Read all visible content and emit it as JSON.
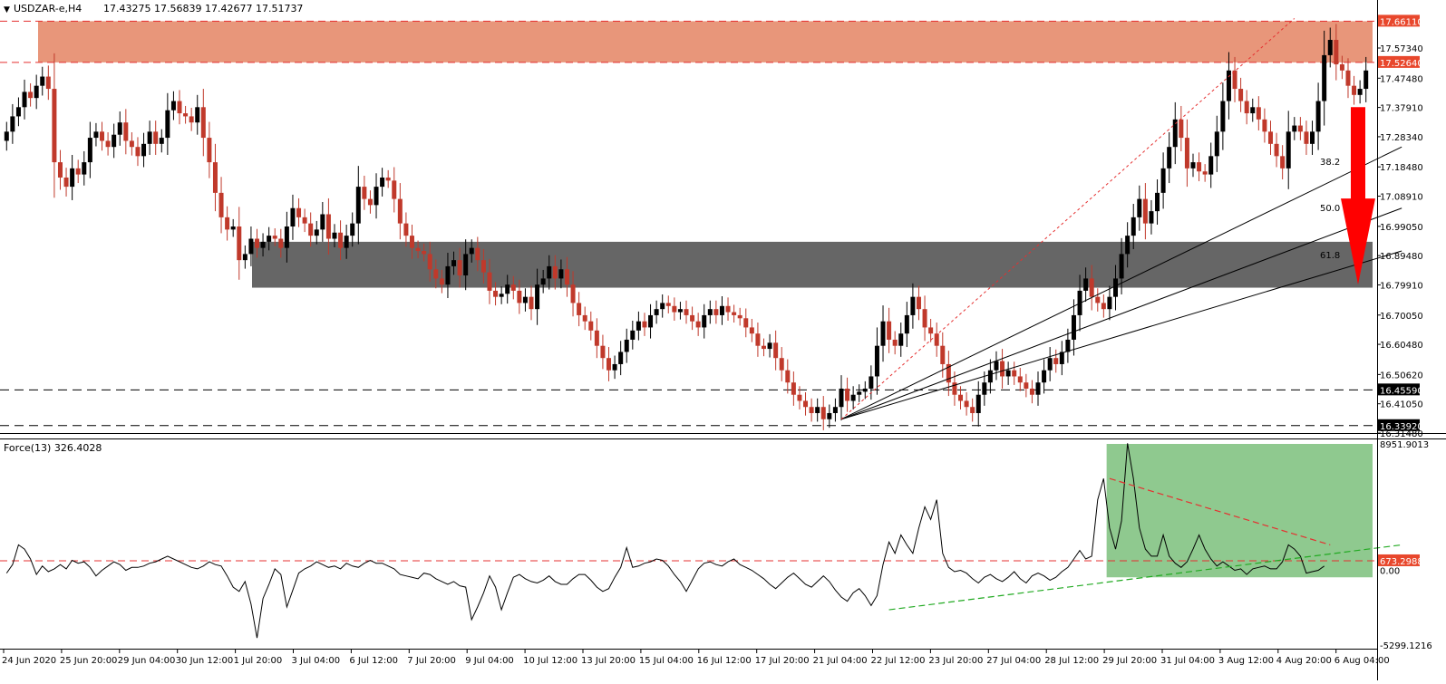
{
  "window": {
    "symbol_title": "USDZAR-e,H4",
    "ohlc_text": "17.43275 17.56839 17.42677 17.51737",
    "indicator_title": "Force(13) 326.4028"
  },
  "colors": {
    "background": "#ffffff",
    "bull_candle": "#000000",
    "bear_candle": "#c0392b",
    "resistance_zone": "#e8967a",
    "support_zone": "#666666",
    "fib_fan": "#000000",
    "dashed_trend": "#e53030",
    "price_label_red": "#e8472c",
    "price_label_black": "#000000",
    "arrow": "#ff0000",
    "force_zone": "#8fc98f",
    "force_support": "#22aa22"
  },
  "chart_data": [
    {
      "type": "candlestick",
      "title": "USDZAR-e,H4",
      "ylim": [
        16.3148,
        17.71
      ],
      "price_axis_ticks": [
        "17.57340",
        "17.47480",
        "17.37910",
        "17.28340",
        "17.18480",
        "17.08910",
        "16.99050",
        "16.89480",
        "16.79910",
        "16.70050",
        "16.60480",
        "16.50620",
        "16.41050",
        "16.31480"
      ],
      "price_labels": [
        {
          "value": 17.6611,
          "text": "17.66110",
          "style": "red"
        },
        {
          "value": 17.5264,
          "text": "17.52640",
          "style": "red"
        },
        {
          "value": 16.4559,
          "text": "16.45590",
          "style": "black"
        },
        {
          "value": 16.3392,
          "text": "16.33920",
          "style": "black"
        }
      ],
      "x_axis_labels": [
        "24 Jun 2020",
        "25 Jun 20:00",
        "29 Jun 04:00",
        "30 Jun 12:00",
        "1 Jul 20:00",
        "3 Jul 04:00",
        "6 Jul 12:00",
        "7 Jul 20:00",
        "9 Jul 04:00",
        "10 Jul 12:00",
        "13 Jul 20:00",
        "15 Jul 04:00",
        "16 Jul 12:00",
        "17 Jul 20:00",
        "21 Jul 04:00",
        "22 Jul 12:00",
        "23 Jul 20:00",
        "27 Jul 04:00",
        "28 Jul 12:00",
        "29 Jul 20:00",
        "31 Jul 04:00",
        "3 Aug 12:00",
        "4 Aug 20:00",
        "6 Aug 04:00"
      ],
      "resistance_zone": [
        17.5264,
        17.6611
      ],
      "support_zone": [
        16.79,
        16.94
      ],
      "horizontal_levels": [
        17.6611,
        17.5264,
        16.4559,
        16.3392
      ],
      "fib_fan_levels": [
        "38.2",
        "50.0",
        "61.8"
      ],
      "fib_fan_origin": {
        "index": 140,
        "price": 16.36
      },
      "fib_fan_end": [
        {
          "label": "38.2",
          "index": 234,
          "price": 17.25
        },
        {
          "label": "50.0",
          "index": 234,
          "price": 17.05
        },
        {
          "label": "61.8",
          "index": 234,
          "price": 16.91
        }
      ],
      "dashed_trendline": [
        {
          "index": 140,
          "price": 16.36
        },
        {
          "index": 216,
          "price": 17.67
        }
      ],
      "forecast_arrow": {
        "from": 17.38,
        "to": 16.8
      },
      "closes": [
        17.3,
        17.35,
        17.38,
        17.43,
        17.41,
        17.45,
        17.48,
        17.44,
        17.2,
        17.15,
        17.12,
        17.18,
        17.16,
        17.2,
        17.28,
        17.3,
        17.27,
        17.25,
        17.29,
        17.33,
        17.27,
        17.25,
        17.22,
        17.26,
        17.3,
        17.26,
        17.28,
        17.37,
        17.4,
        17.36,
        17.35,
        17.33,
        17.38,
        17.28,
        17.2,
        17.1,
        17.02,
        16.98,
        16.99,
        16.88,
        16.9,
        16.95,
        16.92,
        16.94,
        16.96,
        16.95,
        16.92,
        16.99,
        17.05,
        17.02,
        17.0,
        16.96,
        16.98,
        17.03,
        16.95,
        16.97,
        16.92,
        16.96,
        17.0,
        17.12,
        17.08,
        17.06,
        17.12,
        17.15,
        17.14,
        17.08,
        17.0,
        16.96,
        16.92,
        16.91,
        16.9,
        16.85,
        16.82,
        16.8,
        16.86,
        16.88,
        16.83,
        16.9,
        16.92,
        16.88,
        16.84,
        16.78,
        16.76,
        16.77,
        16.8,
        16.78,
        16.74,
        16.76,
        16.72,
        16.8,
        16.82,
        16.86,
        16.82,
        16.85,
        16.8,
        16.74,
        16.7,
        16.68,
        16.65,
        16.6,
        16.56,
        16.52,
        16.54,
        16.58,
        16.62,
        16.65,
        16.68,
        16.66,
        16.7,
        16.72,
        16.74,
        16.73,
        16.71,
        16.72,
        16.7,
        16.68,
        16.66,
        16.7,
        16.72,
        16.7,
        16.73,
        16.71,
        16.7,
        16.69,
        16.66,
        16.64,
        16.6,
        16.59,
        16.61,
        16.56,
        16.52,
        16.48,
        16.44,
        16.42,
        16.4,
        16.38,
        16.4,
        16.36,
        16.38,
        16.4,
        16.46,
        16.42,
        16.44,
        16.45,
        16.46,
        16.5,
        16.6,
        16.68,
        16.62,
        16.6,
        16.64,
        16.7,
        16.76,
        16.72,
        16.66,
        16.64,
        16.6,
        16.54,
        16.48,
        16.44,
        16.42,
        16.4,
        16.38,
        16.44,
        16.48,
        16.52,
        16.55,
        16.5,
        16.52,
        16.5,
        16.48,
        16.46,
        16.44,
        16.48,
        16.52,
        16.56,
        16.54,
        16.58,
        16.62,
        16.7,
        16.78,
        16.82,
        16.76,
        16.74,
        16.72,
        16.76,
        16.82,
        16.9,
        16.96,
        17.02,
        17.08,
        17.0,
        17.04,
        17.1,
        17.18,
        17.25,
        17.34,
        17.28,
        17.18,
        17.2,
        17.17,
        17.16,
        17.22,
        17.3,
        17.4,
        17.5,
        17.44,
        17.4,
        17.36,
        17.38,
        17.34,
        17.3,
        17.26,
        17.22,
        17.18,
        17.3,
        17.32,
        17.3,
        17.26,
        17.3,
        17.4,
        17.55,
        17.6,
        17.52,
        17.5,
        17.45,
        17.42,
        17.44,
        17.5
      ]
    },
    {
      "type": "line",
      "title": "Force(13) 326.4028",
      "ylim": [
        -5299.1216,
        8951.9013
      ],
      "axis_labels": [
        {
          "value": 8951.9013,
          "text": "8951.9013"
        },
        {
          "value": 0,
          "text": "0.00"
        },
        {
          "value": -5299.1216,
          "text": "-5299.1216"
        }
      ],
      "level": {
        "value": 673.2988,
        "text": "673.2988"
      },
      "highlight_zone": {
        "from_index": 185,
        "to_index": 234,
        "low": -500,
        "high": 8951.9013
      },
      "descending_trendline": [
        {
          "index": 185,
          "value": 6500
        },
        {
          "index": 222,
          "value": 1800
        }
      ],
      "ascending_trendline": [
        {
          "index": 148,
          "value": -2800
        },
        {
          "index": 234,
          "value": 1800
        }
      ],
      "values": [
        -200,
        400,
        1800,
        1500,
        800,
        -300,
        300,
        -100,
        100,
        400,
        100,
        700,
        500,
        600,
        200,
        -400,
        0,
        300,
        600,
        400,
        0,
        200,
        200,
        300,
        500,
        600,
        800,
        1000,
        800,
        600,
        400,
        200,
        100,
        300,
        600,
        400,
        300,
        -400,
        -1200,
        -1500,
        -800,
        -2400,
        -4800,
        -2000,
        -1000,
        100,
        -300,
        -2600,
        -1400,
        -200,
        100,
        300,
        600,
        400,
        200,
        300,
        100,
        500,
        300,
        200,
        500,
        700,
        500,
        500,
        300,
        100,
        -300,
        -400,
        -500,
        -600,
        -200,
        -300,
        -600,
        -800,
        -1000,
        -800,
        -1100,
        -1200,
        -3500,
        -2600,
        -1600,
        -400,
        -1200,
        -2800,
        -1600,
        -500,
        -300,
        -600,
        -800,
        -900,
        -700,
        -400,
        -800,
        -1000,
        -1000,
        -600,
        -300,
        -300,
        -700,
        -1200,
        -1500,
        -1300,
        -500,
        200,
        1600,
        200,
        300,
        500,
        600,
        800,
        700,
        300,
        -300,
        -800,
        -1500,
        -700,
        100,
        500,
        600,
        400,
        300,
        600,
        800,
        400,
        200,
        0,
        -300,
        -600,
        -1000,
        -1300,
        -900,
        -500,
        -200,
        -600,
        -1000,
        -1200,
        -800,
        -400,
        -800,
        -1400,
        -1900,
        -2200,
        -1600,
        -1300,
        -1800,
        -2500,
        -1800,
        400,
        2000,
        1200,
        2500,
        1800,
        1200,
        3000,
        4500,
        3600,
        5000,
        1200,
        200,
        -100,
        0,
        -200,
        -600,
        -900,
        -500,
        -300,
        -600,
        -800,
        -500,
        -100,
        -600,
        -900,
        -400,
        -200,
        -400,
        -700,
        -500,
        -100,
        200,
        800,
        1400,
        800,
        1000,
        5000,
        6500,
        3000,
        1500,
        3500,
        9000,
        6500,
        3000,
        1500,
        1000,
        1000,
        2500,
        1000,
        500,
        200,
        600,
        1500,
        2500,
        1500,
        800,
        300,
        600,
        300,
        0,
        100,
        -300,
        100,
        200,
        300,
        100,
        100,
        600,
        1800,
        1500,
        1000,
        -200,
        -100,
        0,
        300
      ]
    }
  ]
}
